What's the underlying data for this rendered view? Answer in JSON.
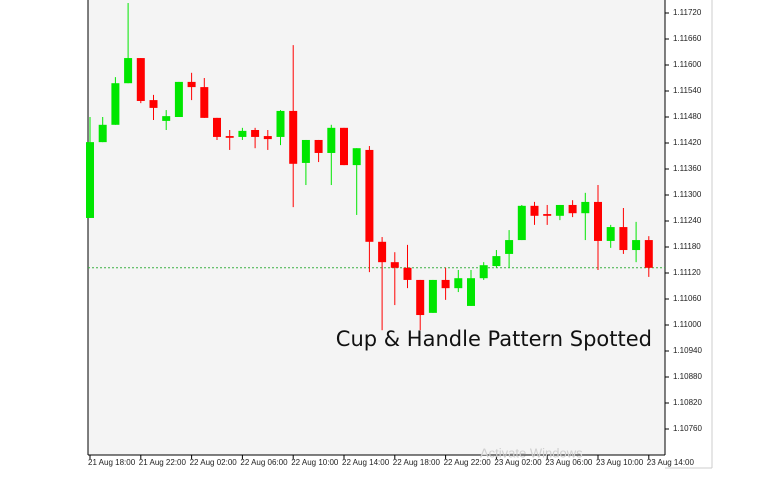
{
  "chart_data": {
    "type": "candlestick",
    "categories": [
      "21 Aug 18:00",
      null,
      null,
      null,
      "21 Aug 22:00",
      null,
      null,
      null,
      "22 Aug 02:00",
      null,
      null,
      null,
      "22 Aug 06:00",
      null,
      null,
      null,
      "22 Aug 10:00",
      null,
      null,
      null,
      "22 Aug 14:00",
      null,
      null,
      null,
      "22 Aug 18:00",
      null,
      null,
      null,
      "22 Aug 22:00",
      null,
      null,
      null,
      "23 Aug 02:00",
      null,
      null,
      null,
      "23 Aug 06:00",
      null,
      null,
      null,
      "23 Aug 10:00",
      null,
      null,
      null,
      "23 Aug 14:00"
    ],
    "open": [
      1.11247,
      1.11422,
      1.11462,
      1.11558,
      1.11616,
      1.11519,
      1.11471,
      1.1148,
      1.11561,
      1.11549,
      1.11478,
      1.11436,
      1.11434,
      1.1145,
      1.11436,
      1.11434,
      1.11494,
      1.11374,
      1.11427,
      1.11397,
      1.11455,
      1.11369,
      1.11404,
      1.11192,
      1.11145,
      1.11132,
      1.11104,
      1.11028,
      1.11104,
      1.11085,
      1.11044,
      1.11108,
      1.11136,
      1.11164,
      1.11196,
      1.11275,
      1.11256,
      1.11252,
      1.11277,
      1.11258,
      1.11284,
      1.11194,
      1.11226,
      1.11173,
      1.11196
    ],
    "high": [
      1.1148,
      1.1148,
      1.11572,
      1.11743,
      1.11616,
      1.11531,
      1.11496,
      1.11561,
      1.11582,
      1.1157,
      1.11478,
      1.1145,
      1.11455,
      1.11455,
      1.1145,
      1.11496,
      1.11646,
      1.11427,
      1.11427,
      1.11462,
      1.11455,
      1.11408,
      1.11413,
      1.11203,
      1.11168,
      1.11185,
      1.11104,
      1.11104,
      1.11132,
      1.11127,
      1.11127,
      1.11145,
      1.11173,
      1.11219,
      1.11277,
      1.11284,
      1.11277,
      1.11277,
      1.11288,
      1.11305,
      1.11323,
      1.11231,
      1.1127,
      1.11238,
      1.11205
    ],
    "low": [
      1.11247,
      1.11422,
      1.11462,
      1.11558,
      1.11512,
      1.11473,
      1.1145,
      1.1148,
      1.11519,
      1.11478,
      1.11427,
      1.11404,
      1.11427,
      1.11408,
      1.11404,
      1.11415,
      1.11272,
      1.11323,
      1.11376,
      1.11323,
      1.11369,
      1.11254,
      1.11122,
      1.10988,
      1.11046,
      1.11085,
      1.10988,
      1.11028,
      1.11058,
      1.11076,
      1.11044,
      1.11104,
      1.11132,
      1.11132,
      1.11196,
      1.11231,
      1.11231,
      1.11242,
      1.11249,
      1.11196,
      1.11127,
      1.11178,
      1.11164,
      1.11145,
      1.11111
    ],
    "close": [
      1.11422,
      1.11462,
      1.11558,
      1.11616,
      1.11517,
      1.11501,
      1.11482,
      1.11561,
      1.11549,
      1.11478,
      1.11434,
      1.11432,
      1.11448,
      1.11434,
      1.11429,
      1.11494,
      1.11372,
      1.11427,
      1.11397,
      1.11455,
      1.11369,
      1.11408,
      1.11192,
      1.11145,
      1.11132,
      1.11104,
      1.11023,
      1.11104,
      1.11085,
      1.11108,
      1.11108,
      1.11138,
      1.11159,
      1.11196,
      1.11275,
      1.11252,
      1.11252,
      1.11277,
      1.11258,
      1.11284,
      1.11194,
      1.11226,
      1.11173,
      1.11196,
      1.11132
    ],
    "up_color": "#00e600",
    "down_color": "#ff0000",
    "price_line": 1.11132,
    "price_line_color": "#3cb043",
    "ylim": [
      1.107,
      1.1175
    ],
    "yticks": [
      {
        "value": 1.1076,
        "label": "1.10760"
      },
      {
        "value": 1.1082,
        "label": "1.10820"
      },
      {
        "value": 1.1088,
        "label": "1.10880"
      },
      {
        "value": 1.1094,
        "label": "1.10940"
      },
      {
        "value": 1.11,
        "label": "1.11000"
      },
      {
        "value": 1.1106,
        "label": "1.11060"
      },
      {
        "value": 1.1112,
        "label": "1.11120"
      },
      {
        "value": 1.1118,
        "label": "1.11180"
      },
      {
        "value": 1.1124,
        "label": "1.11240"
      },
      {
        "value": 1.113,
        "label": "1.11300"
      },
      {
        "value": 1.1136,
        "label": "1.11360"
      },
      {
        "value": 1.1142,
        "label": "1.11420"
      },
      {
        "value": 1.1148,
        "label": "1.11480"
      },
      {
        "value": 1.1154,
        "label": "1.11540"
      },
      {
        "value": 1.116,
        "label": "1.11600"
      },
      {
        "value": 1.1166,
        "label": "1.11660"
      },
      {
        "value": 1.1172,
        "label": "1.11720"
      }
    ],
    "annotation": "Cup & Handle Pattern Spotted",
    "watermark": "Activate Windows"
  }
}
